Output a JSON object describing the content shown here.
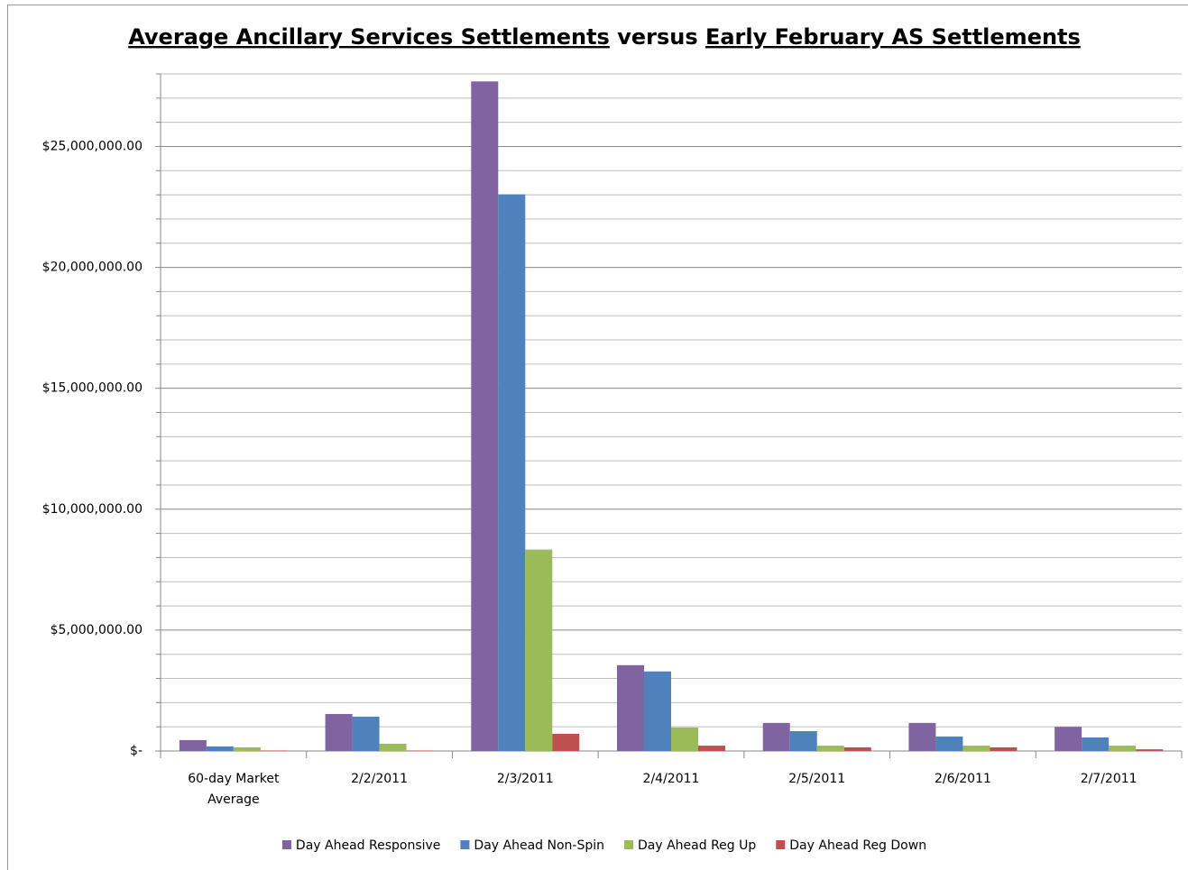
{
  "chart_data": {
    "type": "bar",
    "title": [
      "Average Ancillary Services Settlements",
      "versus",
      "Early February AS Settlements"
    ],
    "title_underline": [
      true,
      false,
      true
    ],
    "categories": [
      "60-day Market Average",
      "2/2/2011",
      "2/3/2011",
      "2/4/2011",
      "2/5/2011",
      "2/6/2011",
      "2/7/2011"
    ],
    "series": [
      {
        "name": "Day Ahead Responsive",
        "color": "#8064a2",
        "values": [
          450000,
          1530000,
          27690000,
          3550000,
          1160000,
          1160000,
          1000000
        ]
      },
      {
        "name": "Day Ahead Non-Spin",
        "color": "#4f81bd",
        "values": [
          190000,
          1420000,
          23020000,
          3290000,
          820000,
          600000,
          560000
        ]
      },
      {
        "name": "Day Ahead Reg Up",
        "color": "#9bbb59",
        "values": [
          150000,
          300000,
          8330000,
          970000,
          220000,
          220000,
          220000
        ]
      },
      {
        "name": "Day Ahead Reg Down",
        "color": "#c0504d",
        "values": [
          20000,
          20000,
          710000,
          220000,
          150000,
          150000,
          70000
        ]
      }
    ],
    "ylim": [
      0,
      28000000
    ],
    "yticks": [
      {
        "value": 0,
        "label": "$-"
      },
      {
        "value": 5000000,
        "label": "$5,000,000.00"
      },
      {
        "value": 10000000,
        "label": "$10,000,000.00"
      },
      {
        "value": 15000000,
        "label": "$15,000,000.00"
      },
      {
        "value": 20000000,
        "label": "$20,000,000.00"
      },
      {
        "value": 25000000,
        "label": "$25,000,000.00"
      }
    ],
    "minor_yticks": [
      1000000,
      2000000,
      3000000,
      4000000,
      6000000,
      7000000,
      8000000,
      9000000,
      11000000,
      12000000,
      13000000,
      14000000,
      16000000,
      17000000,
      18000000,
      19000000,
      21000000,
      22000000,
      23000000,
      24000000,
      26000000,
      27000000,
      28000000
    ],
    "grid": true,
    "legend": "bottom"
  }
}
